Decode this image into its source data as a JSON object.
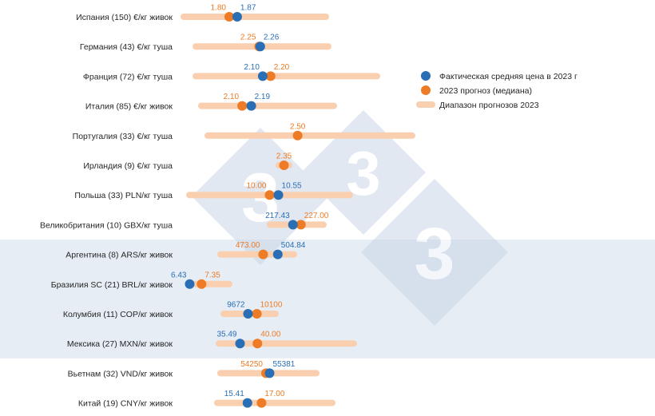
{
  "chart_data": {
    "type": "dot-range",
    "colors": {
      "actual": "#2a6fb5",
      "forecast": "#ee7b25",
      "range": "#f9cfb0",
      "band": "#e6edf5",
      "watermark": "#c9d6e6"
    },
    "watermark_text": "333",
    "legend": [
      {
        "key": "actual",
        "label": "Фактическая средняя цена в 2023 г"
      },
      {
        "key": "forecast",
        "label": "2023 прогноз (медиана)"
      },
      {
        "key": "range",
        "label": "Диапазон прогнозов 2023"
      }
    ],
    "shaded_rows": [
      "Аргентина (8) ARS/кг живок",
      "Бразилия SC (21) BRL/кг живок",
      "Колумбия (11) COP/кг живок",
      "Мексика (27) MXN/кг живок"
    ],
    "rows": [
      {
        "label": "Испания (150) €/кг живок",
        "actual": 1.87,
        "actual_text": "1.87",
        "forecast": 1.8,
        "forecast_text": "1.80",
        "range": [
          1.4,
          2.65
        ]
      },
      {
        "label": "Германия (43) €/кг туша",
        "actual": 2.26,
        "actual_text": "2.26",
        "forecast": 2.25,
        "forecast_text": "2.25",
        "range": [
          1.7,
          2.85
        ]
      },
      {
        "label": "Франция (72) €/кг туша",
        "actual": 2.1,
        "actual_text": "2.10",
        "forecast": 2.2,
        "forecast_text": "2.20",
        "range": [
          1.25,
          3.55
        ]
      },
      {
        "label": "Италия (85) €/кг живок",
        "actual": 2.19,
        "actual_text": "2.19",
        "forecast": 2.1,
        "forecast_text": "2.10",
        "range": [
          1.7,
          3.0
        ]
      },
      {
        "label": "Португалия (33) €/кг туша",
        "actual": null,
        "actual_text": "",
        "forecast": 2.5,
        "forecast_text": "2.50",
        "range": [
          1.4,
          3.9
        ]
      },
      {
        "label": "Ирландия (9) €/кг туша",
        "actual": null,
        "actual_text": "",
        "forecast": 2.35,
        "forecast_text": "2.35",
        "range": [
          2.3,
          2.4
        ]
      },
      {
        "label": "Польша (33) PLN/кг туша",
        "actual": 10.55,
        "actual_text": "10.55",
        "forecast": 10.0,
        "forecast_text": "10.00",
        "range": [
          5.0,
          15.0
        ]
      },
      {
        "label": "Великобритания (10) GBX/кг туша",
        "actual": 217.43,
        "actual_text": "217.43",
        "forecast": 227.0,
        "forecast_text": "227.00",
        "range": [
          190.0,
          254.0
        ]
      },
      {
        "label": "Аргентина (8) ARS/кг живок",
        "actual": 504.84,
        "actual_text": "504.84",
        "forecast": 473.0,
        "forecast_text": "473.00",
        "range": [
          380.0,
          540.0
        ]
      },
      {
        "label": "Бразилия SC (21) BRL/кг живок",
        "actual": 6.43,
        "actual_text": "6.43",
        "forecast": 7.35,
        "forecast_text": "7.35",
        "range": [
          6.4,
          9.5
        ]
      },
      {
        "label": "Колумбия (11) COP/кг живок",
        "actual": 9672,
        "actual_text": "9672",
        "forecast": 10100,
        "forecast_text": "10100",
        "range": [
          8500,
          11000
        ]
      },
      {
        "label": "Мексика (27) MXN/кг живок",
        "actual": 35.49,
        "actual_text": "35.49",
        "forecast": 40.0,
        "forecast_text": "40.00",
        "range": [
          30.0,
          65.0
        ]
      },
      {
        "label": "Вьетнам (32) VND/кг живок",
        "actual": 55381,
        "actual_text": "55381",
        "forecast": 54250,
        "forecast_text": "54250",
        "range": [
          40000,
          70000
        ]
      },
      {
        "label": "Китай (19) CNY/кг живок",
        "actual": 15.41,
        "actual_text": "15.41",
        "forecast": 17.0,
        "forecast_text": "17.00",
        "range": [
          12.0,
          25.0
        ]
      }
    ]
  }
}
